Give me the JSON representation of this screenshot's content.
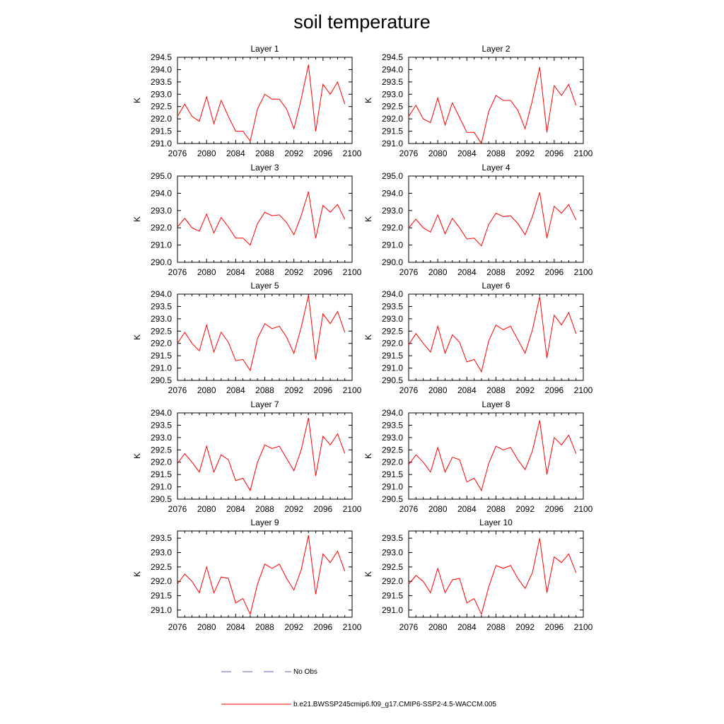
{
  "figure_title": "soil temperature",
  "legend": [
    {
      "label": "No Obs",
      "color": "#6a5acd",
      "style": "dashed"
    },
    {
      "label": "b.e21.BWSSP245cmip6.f09_g17.CMIP6-SSP2-4.5-WACCM.005",
      "color": "#ff0000",
      "style": "solid"
    }
  ],
  "colors": {
    "series": "#ff0000",
    "obs": "#6a5acd",
    "axis": "#000000"
  },
  "chart_data": [
    {
      "type": "line",
      "title": "Layer 1",
      "ylabel": "K",
      "xlim": [
        2076,
        2100
      ],
      "ylim": [
        291.0,
        294.5
      ],
      "xticks": [
        "2076",
        "2080",
        "2084",
        "2088",
        "2092",
        "2096",
        "2100"
      ],
      "yticks": [
        "291.0",
        "291.5",
        "292.0",
        "292.5",
        "293.0",
        "293.5",
        "294.0",
        "294.5"
      ],
      "x": [
        2076,
        2077,
        2078,
        2079,
        2080,
        2081,
        2082,
        2083,
        2084,
        2085,
        2086,
        2087,
        2088,
        2089,
        2090,
        2091,
        2092,
        2093,
        2094,
        2095,
        2096,
        2097,
        2098,
        2099
      ],
      "values": [
        292.1,
        292.6,
        292.1,
        291.9,
        292.9,
        291.8,
        292.75,
        292.1,
        291.5,
        291.5,
        291.1,
        292.4,
        293.0,
        292.8,
        292.8,
        292.4,
        291.6,
        292.8,
        294.2,
        291.5,
        293.4,
        293.0,
        293.5,
        292.6
      ]
    },
    {
      "type": "line",
      "title": "Layer 2",
      "ylabel": "K",
      "xlim": [
        2076,
        2100
      ],
      "ylim": [
        291.0,
        294.5
      ],
      "xticks": [
        "2076",
        "2080",
        "2084",
        "2088",
        "2092",
        "2096",
        "2100"
      ],
      "yticks": [
        "291.0",
        "291.5",
        "292.0",
        "292.5",
        "293.0",
        "293.5",
        "294.0",
        "294.5"
      ],
      "x": [
        2076,
        2077,
        2078,
        2079,
        2080,
        2081,
        2082,
        2083,
        2084,
        2085,
        2086,
        2087,
        2088,
        2089,
        2090,
        2091,
        2092,
        2093,
        2094,
        2095,
        2096,
        2097,
        2098,
        2099
      ],
      "values": [
        292.1,
        292.55,
        292.0,
        291.85,
        292.85,
        291.75,
        292.65,
        292.05,
        291.45,
        291.45,
        291.0,
        292.3,
        292.95,
        292.75,
        292.75,
        292.35,
        291.6,
        292.75,
        294.1,
        291.45,
        293.35,
        292.95,
        293.4,
        292.55
      ]
    },
    {
      "type": "line",
      "title": "Layer 3",
      "ylabel": "K",
      "xlim": [
        2076,
        2100
      ],
      "ylim": [
        290.0,
        295.0
      ],
      "xticks": [
        "2076",
        "2080",
        "2084",
        "2088",
        "2092",
        "2096",
        "2100"
      ],
      "yticks": [
        "290.0",
        "291.0",
        "292.0",
        "293.0",
        "294.0",
        "295.0"
      ],
      "x": [
        2076,
        2077,
        2078,
        2079,
        2080,
        2081,
        2082,
        2083,
        2084,
        2085,
        2086,
        2087,
        2088,
        2089,
        2090,
        2091,
        2092,
        2093,
        2094,
        2095,
        2096,
        2097,
        2098,
        2099
      ],
      "values": [
        292.05,
        292.55,
        292.0,
        291.8,
        292.8,
        291.7,
        292.6,
        292.05,
        291.4,
        291.4,
        291.0,
        292.25,
        292.9,
        292.7,
        292.75,
        292.3,
        291.6,
        292.7,
        294.1,
        291.4,
        293.3,
        292.9,
        293.35,
        292.5
      ]
    },
    {
      "type": "line",
      "title": "Layer 4",
      "ylabel": "K",
      "xlim": [
        2076,
        2100
      ],
      "ylim": [
        290.0,
        295.0
      ],
      "xticks": [
        "2076",
        "2080",
        "2084",
        "2088",
        "2092",
        "2096",
        "2100"
      ],
      "yticks": [
        "290.0",
        "291.0",
        "292.0",
        "293.0",
        "294.0",
        "295.0"
      ],
      "x": [
        2076,
        2077,
        2078,
        2079,
        2080,
        2081,
        2082,
        2083,
        2084,
        2085,
        2086,
        2087,
        2088,
        2089,
        2090,
        2091,
        2092,
        2093,
        2094,
        2095,
        2096,
        2097,
        2098,
        2099
      ],
      "values": [
        292.0,
        292.5,
        292.0,
        291.75,
        292.75,
        291.65,
        292.55,
        292.0,
        291.35,
        291.4,
        290.95,
        292.2,
        292.85,
        292.65,
        292.7,
        292.25,
        291.6,
        292.65,
        294.05,
        291.4,
        293.25,
        292.85,
        293.35,
        292.45
      ]
    },
    {
      "type": "line",
      "title": "Layer 5",
      "ylabel": "K",
      "xlim": [
        2076,
        2100
      ],
      "ylim": [
        290.5,
        294.0
      ],
      "xticks": [
        "2076",
        "2080",
        "2084",
        "2088",
        "2092",
        "2096",
        "2100"
      ],
      "yticks": [
        "290.5",
        "291.0",
        "291.5",
        "292.0",
        "292.5",
        "293.0",
        "293.5",
        "294.0"
      ],
      "x": [
        2076,
        2077,
        2078,
        2079,
        2080,
        2081,
        2082,
        2083,
        2084,
        2085,
        2086,
        2087,
        2088,
        2089,
        2090,
        2091,
        2092,
        2093,
        2094,
        2095,
        2096,
        2097,
        2098,
        2099
      ],
      "values": [
        292.0,
        292.45,
        292.0,
        291.7,
        292.75,
        291.65,
        292.45,
        292.05,
        291.3,
        291.35,
        290.9,
        292.2,
        292.8,
        292.6,
        292.7,
        292.25,
        291.6,
        292.65,
        293.95,
        291.35,
        293.2,
        292.8,
        293.3,
        292.45
      ]
    },
    {
      "type": "line",
      "title": "Layer 6",
      "ylabel": "K",
      "xlim": [
        2076,
        2100
      ],
      "ylim": [
        290.5,
        294.0
      ],
      "xticks": [
        "2076",
        "2080",
        "2084",
        "2088",
        "2092",
        "2096",
        "2100"
      ],
      "yticks": [
        "290.5",
        "291.0",
        "291.5",
        "292.0",
        "292.5",
        "293.0",
        "293.5",
        "294.0"
      ],
      "x": [
        2076,
        2077,
        2078,
        2079,
        2080,
        2081,
        2082,
        2083,
        2084,
        2085,
        2086,
        2087,
        2088,
        2089,
        2090,
        2091,
        2092,
        2093,
        2094,
        2095,
        2096,
        2097,
        2098,
        2099
      ],
      "values": [
        291.95,
        292.4,
        292.0,
        291.65,
        292.7,
        291.6,
        292.35,
        292.05,
        291.25,
        291.35,
        290.85,
        292.1,
        292.75,
        292.55,
        292.7,
        292.15,
        291.6,
        292.55,
        293.9,
        291.4,
        293.15,
        292.75,
        293.25,
        292.4
      ]
    },
    {
      "type": "line",
      "title": "Layer 7",
      "ylabel": "K",
      "xlim": [
        2076,
        2100
      ],
      "ylim": [
        290.5,
        294.0
      ],
      "xticks": [
        "2076",
        "2080",
        "2084",
        "2088",
        "2092",
        "2096",
        "2100"
      ],
      "yticks": [
        "290.5",
        "291.0",
        "291.5",
        "292.0",
        "292.5",
        "293.0",
        "293.5",
        "294.0"
      ],
      "x": [
        2076,
        2077,
        2078,
        2079,
        2080,
        2081,
        2082,
        2083,
        2084,
        2085,
        2086,
        2087,
        2088,
        2089,
        2090,
        2091,
        2092,
        2093,
        2094,
        2095,
        2096,
        2097,
        2098,
        2099
      ],
      "values": [
        291.95,
        292.35,
        292.0,
        291.6,
        292.65,
        291.6,
        292.3,
        292.1,
        291.25,
        291.35,
        290.85,
        292.0,
        292.7,
        292.55,
        292.65,
        292.15,
        291.65,
        292.5,
        293.8,
        291.45,
        293.05,
        292.7,
        293.15,
        292.35
      ]
    },
    {
      "type": "line",
      "title": "Layer 8",
      "ylabel": "K",
      "xlim": [
        2076,
        2100
      ],
      "ylim": [
        290.5,
        294.0
      ],
      "xticks": [
        "2076",
        "2080",
        "2084",
        "2088",
        "2092",
        "2096",
        "2100"
      ],
      "yticks": [
        "290.5",
        "291.0",
        "291.5",
        "292.0",
        "292.5",
        "293.0",
        "293.5",
        "294.0"
      ],
      "x": [
        2076,
        2077,
        2078,
        2079,
        2080,
        2081,
        2082,
        2083,
        2084,
        2085,
        2086,
        2087,
        2088,
        2089,
        2090,
        2091,
        2092,
        2093,
        2094,
        2095,
        2096,
        2097,
        2098,
        2099
      ],
      "values": [
        291.9,
        292.3,
        292.0,
        291.6,
        292.6,
        291.6,
        292.2,
        292.1,
        291.2,
        291.35,
        290.85,
        291.95,
        292.65,
        292.5,
        292.6,
        292.1,
        291.7,
        292.45,
        293.7,
        291.5,
        293.0,
        292.7,
        293.1,
        292.35
      ]
    },
    {
      "type": "line",
      "title": "Layer 9",
      "ylabel": "K",
      "xlim": [
        2076,
        2100
      ],
      "ylim": [
        290.75,
        293.75
      ],
      "xticks": [
        "2076",
        "2080",
        "2084",
        "2088",
        "2092",
        "2096",
        "2100"
      ],
      "yticks": [
        "291.0",
        "291.5",
        "292.0",
        "292.5",
        "293.0",
        "293.5"
      ],
      "x": [
        2076,
        2077,
        2078,
        2079,
        2080,
        2081,
        2082,
        2083,
        2084,
        2085,
        2086,
        2087,
        2088,
        2089,
        2090,
        2091,
        2092,
        2093,
        2094,
        2095,
        2096,
        2097,
        2098,
        2099
      ],
      "values": [
        291.9,
        292.25,
        292.0,
        291.6,
        292.5,
        291.6,
        292.15,
        292.1,
        291.25,
        291.4,
        290.85,
        291.9,
        292.6,
        292.45,
        292.6,
        292.1,
        291.7,
        292.4,
        293.6,
        291.55,
        292.95,
        292.65,
        293.05,
        292.35
      ]
    },
    {
      "type": "line",
      "title": "Layer 10",
      "ylabel": "K",
      "xlim": [
        2076,
        2100
      ],
      "ylim": [
        290.75,
        293.75
      ],
      "xticks": [
        "2076",
        "2080",
        "2084",
        "2088",
        "2092",
        "2096",
        "2100"
      ],
      "yticks": [
        "291.0",
        "291.5",
        "292.0",
        "292.5",
        "293.0",
        "293.5"
      ],
      "x": [
        2076,
        2077,
        2078,
        2079,
        2080,
        2081,
        2082,
        2083,
        2084,
        2085,
        2086,
        2087,
        2088,
        2089,
        2090,
        2091,
        2092,
        2093,
        2094,
        2095,
        2096,
        2097,
        2098,
        2099
      ],
      "values": [
        291.9,
        292.2,
        292.0,
        291.6,
        292.45,
        291.6,
        292.05,
        292.1,
        291.25,
        291.4,
        290.85,
        291.8,
        292.55,
        292.45,
        292.55,
        292.1,
        291.75,
        292.3,
        293.5,
        291.6,
        292.85,
        292.65,
        292.95,
        292.3
      ]
    }
  ]
}
